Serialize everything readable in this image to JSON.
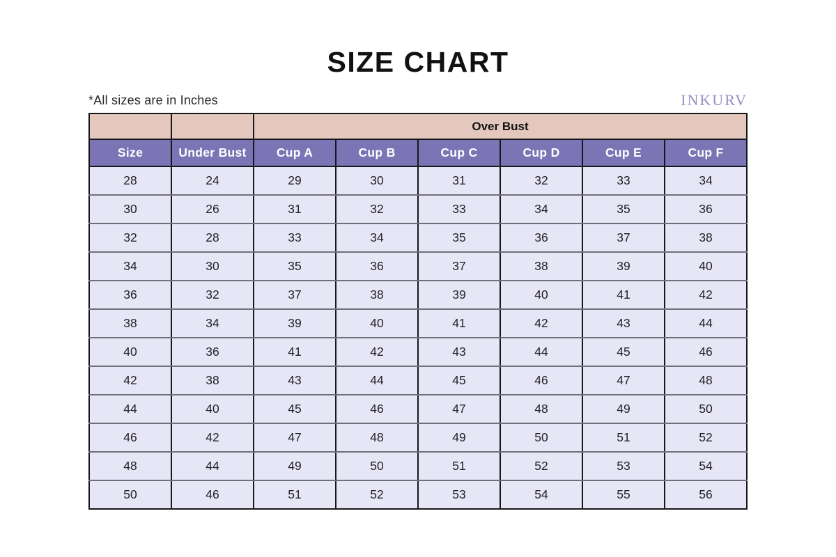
{
  "page": {
    "title": "SIZE CHART",
    "units_note": "*All sizes are in Inches",
    "brand": "INKURV"
  },
  "colors": {
    "header_purple": "#7b74b5",
    "band_peach": "#e5c8bd",
    "cell_lavender": "#e7e6f7",
    "brand_purple": "#9a8dc5",
    "grid_dark": "#17171a",
    "grid_gray": "#6f6f7a"
  },
  "chart_data": {
    "type": "table",
    "title": "SIZE CHART",
    "units_note": "*All sizes are in Inches",
    "group_header": {
      "label": "Over Bust",
      "spans_columns": [
        "Cup A",
        "Cup B",
        "Cup C",
        "Cup D",
        "Cup E",
        "Cup F"
      ]
    },
    "columns": [
      "Size",
      "Under Bust",
      "Cup A",
      "Cup B",
      "Cup C",
      "Cup D",
      "Cup E",
      "Cup F"
    ],
    "rows": [
      [
        28,
        24,
        29,
        30,
        31,
        32,
        33,
        34
      ],
      [
        30,
        26,
        31,
        32,
        33,
        34,
        35,
        36
      ],
      [
        32,
        28,
        33,
        34,
        35,
        36,
        37,
        38
      ],
      [
        34,
        30,
        35,
        36,
        37,
        38,
        39,
        40
      ],
      [
        36,
        32,
        37,
        38,
        39,
        40,
        41,
        42
      ],
      [
        38,
        34,
        39,
        40,
        41,
        42,
        43,
        44
      ],
      [
        40,
        36,
        41,
        42,
        43,
        44,
        45,
        46
      ],
      [
        42,
        38,
        43,
        44,
        45,
        46,
        47,
        48
      ],
      [
        44,
        40,
        45,
        46,
        47,
        48,
        49,
        50
      ],
      [
        46,
        42,
        47,
        48,
        49,
        50,
        51,
        52
      ],
      [
        48,
        44,
        49,
        50,
        51,
        52,
        53,
        54
      ],
      [
        50,
        46,
        51,
        52,
        53,
        54,
        55,
        56
      ]
    ]
  }
}
